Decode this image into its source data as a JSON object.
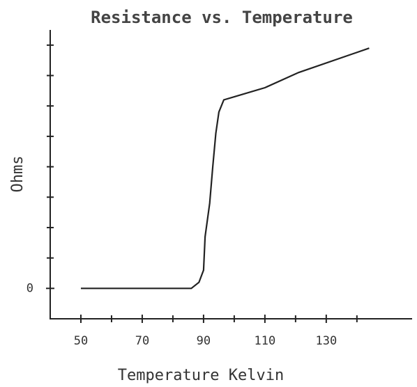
{
  "chart_data": {
    "type": "line",
    "title": "Resistance vs. Temperature",
    "xlabel": "Temperature Kelvin",
    "ylabel": "Ohms",
    "x": [
      50,
      86,
      88.5,
      90,
      90.5,
      92,
      93,
      94,
      95,
      96.6,
      100,
      110,
      121,
      144
    ],
    "series": [
      {
        "color": "#222222",
        "values": [
          0,
          0,
          0.2,
          0.6,
          1.7,
          2.8,
          4,
          5.1,
          5.8,
          6.2,
          6.3,
          6.6,
          7.1,
          7.9
        ]
      }
    ],
    "xlim": [
      40,
      158
    ],
    "xticks": [
      50,
      70,
      90,
      110,
      130
    ],
    "xminorticks": [
      60,
      80,
      100,
      120,
      140
    ],
    "ylim": [
      -1,
      8.5
    ],
    "yticks": [
      0
    ],
    "yminorticks": [
      1,
      2,
      3,
      4,
      5,
      6,
      7,
      8
    ],
    "grid": false
  }
}
